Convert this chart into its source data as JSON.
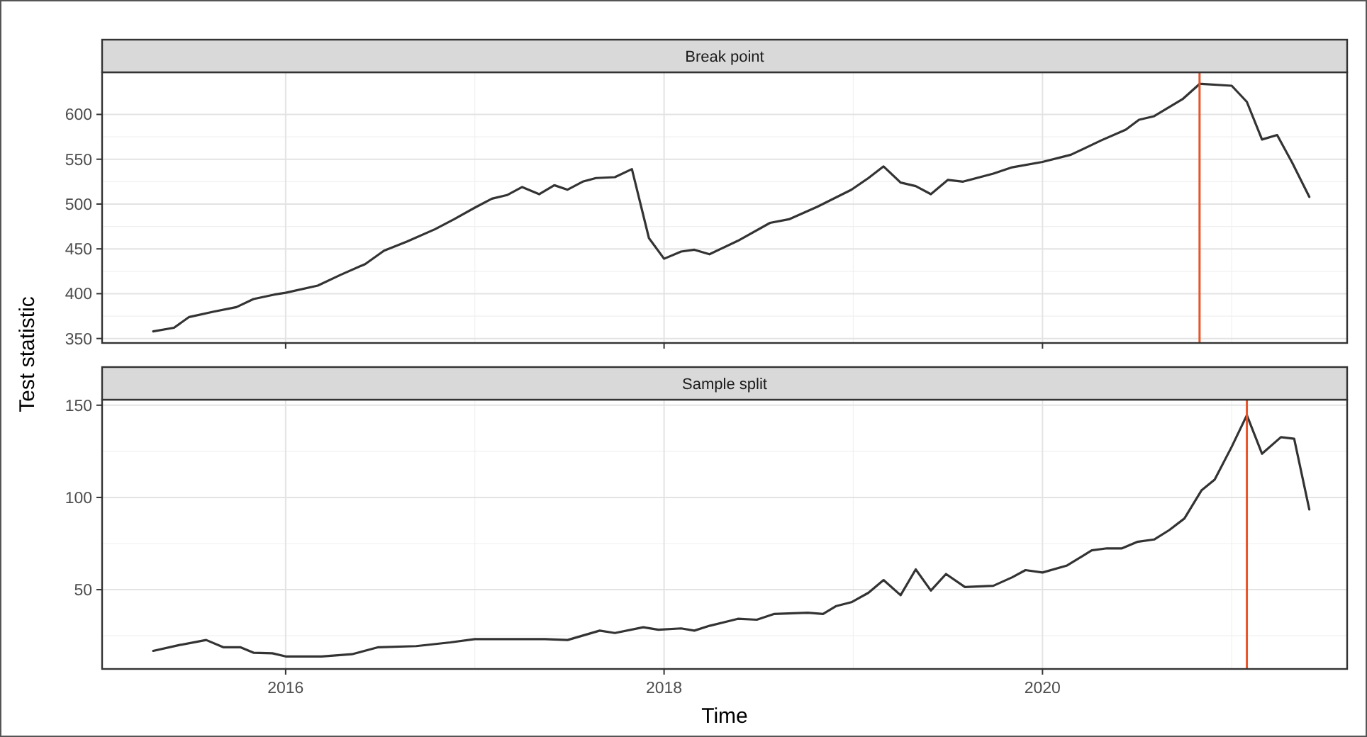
{
  "chart_data": [
    {
      "type": "line",
      "title": "Break point",
      "ylabel": "Test statistic",
      "tick_labels": "y",
      "grid": true,
      "xlim": [
        2015.03,
        2021.61
      ],
      "xticks": [
        2016,
        2018,
        2020
      ],
      "ylim": [
        345,
        647
      ],
      "yticks": [
        350,
        400,
        450,
        500,
        550,
        600
      ],
      "ref_lines": [
        {
          "axis": "x",
          "value": 2020.83,
          "color": "#e8542a"
        }
      ],
      "series": [
        {
          "color": "#333333",
          "x": [
            2015.3,
            2015.41,
            2015.49,
            2015.62,
            2015.74,
            2015.83,
            2015.94,
            2016.0,
            2016.17,
            2016.29,
            2016.42,
            2016.52,
            2016.64,
            2016.79,
            2016.89,
            2017.0,
            2017.09,
            2017.17,
            2017.25,
            2017.34,
            2017.42,
            2017.49,
            2017.57,
            2017.64,
            2017.74,
            2017.83,
            2017.92,
            2018.0,
            2018.09,
            2018.16,
            2018.24,
            2018.39,
            2018.56,
            2018.66,
            2018.81,
            2018.99,
            2019.08,
            2019.16,
            2019.25,
            2019.33,
            2019.41,
            2019.5,
            2019.58,
            2019.74,
            2019.84,
            2020.0,
            2020.15,
            2020.31,
            2020.44,
            2020.51,
            2020.59,
            2020.74,
            2020.83,
            2020.84,
            2021.0,
            2021.08,
            2021.16,
            2021.24,
            2021.32,
            2021.41
          ],
          "values": [
            358,
            362,
            374,
            380,
            385,
            394,
            399,
            401,
            409,
            421,
            433,
            448,
            458,
            472,
            483,
            496,
            506,
            510,
            519,
            511,
            521,
            516,
            525,
            529,
            530,
            539,
            462,
            439,
            447,
            449,
            444,
            459,
            479,
            483,
            497,
            516,
            529,
            542,
            524,
            520,
            511,
            527,
            525,
            534,
            541,
            547,
            555,
            571,
            583,
            594,
            598,
            617,
            634,
            634,
            632,
            614,
            572,
            577,
            546,
            508
          ]
        }
      ]
    },
    {
      "type": "line",
      "title": "Sample split",
      "xlabel": "Time",
      "grid": true,
      "xlim": [
        2015.03,
        2021.61
      ],
      "xticks": [
        2016,
        2018,
        2020
      ],
      "ylim": [
        7,
        153
      ],
      "yticks": [
        50,
        100,
        150
      ],
      "ref_lines": [
        {
          "axis": "x",
          "value": 2021.08,
          "color": "#e8542a"
        }
      ],
      "series": [
        {
          "color": "#333333",
          "x": [
            2015.3,
            2015.44,
            2015.58,
            2015.67,
            2015.76,
            2015.83,
            2015.93,
            2016.0,
            2016.19,
            2016.35,
            2016.49,
            2016.69,
            2016.87,
            2017.0,
            2017.37,
            2017.49,
            2017.66,
            2017.74,
            2017.89,
            2017.97,
            2018.09,
            2018.16,
            2018.24,
            2018.39,
            2018.49,
            2018.58,
            2018.76,
            2018.84,
            2018.91,
            2018.99,
            2019.08,
            2019.16,
            2019.25,
            2019.33,
            2019.41,
            2019.49,
            2019.59,
            2019.74,
            2019.84,
            2019.91,
            2020.0,
            2020.13,
            2020.26,
            2020.34,
            2020.42,
            2020.5,
            2020.59,
            2020.67,
            2020.75,
            2020.84,
            2020.91,
            2021.0,
            2021.08,
            2021.16,
            2021.26,
            2021.33,
            2021.41
          ],
          "values": [
            16.8,
            20,
            22.7,
            18.8,
            18.8,
            15.8,
            15.5,
            13.8,
            13.8,
            15,
            18.8,
            19.4,
            21.4,
            23.2,
            23.2,
            22.7,
            27.8,
            26.5,
            29.6,
            28.3,
            29,
            27.8,
            30.4,
            34.2,
            33.7,
            36.8,
            37.5,
            36.8,
            41.1,
            43.2,
            48.3,
            55.2,
            47,
            61,
            49.5,
            58.5,
            51.4,
            52.1,
            56.7,
            60.6,
            59.3,
            63.1,
            71.3,
            72.4,
            72.4,
            75.9,
            77.2,
            82.3,
            88.6,
            103.8,
            109.7,
            127.5,
            144.6,
            123.7,
            132.7,
            131.8,
            93.5
          ]
        }
      ]
    }
  ]
}
